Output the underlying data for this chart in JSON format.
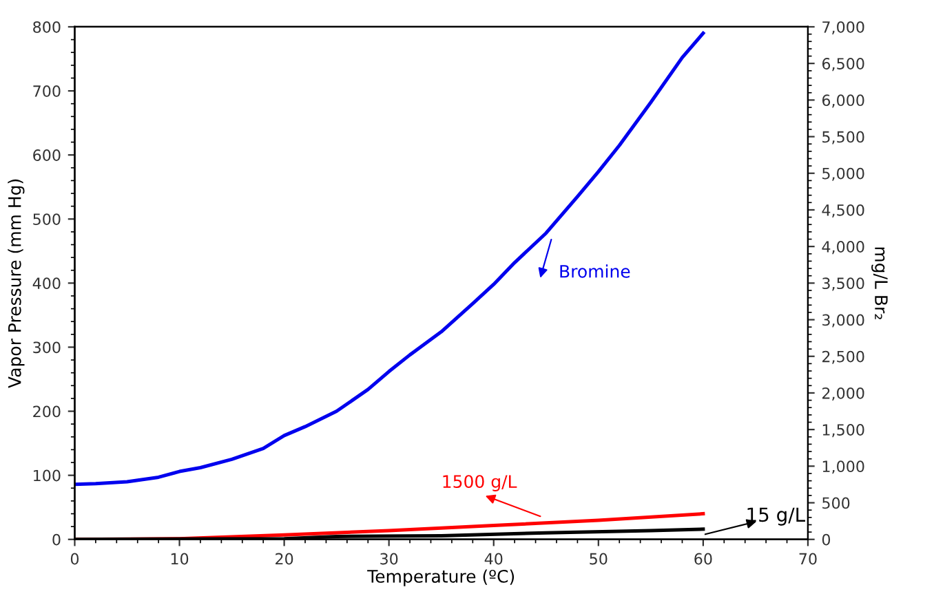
{
  "chart_data": {
    "type": "line",
    "xlabel": "Temperature (ºC)",
    "ylabel": "Vapor Pressure (mm Hg)",
    "y2label": "mg/L Br₂",
    "xlim": [
      0,
      70
    ],
    "xticks": [
      0,
      10,
      20,
      30,
      40,
      50,
      60,
      70
    ],
    "ylim": [
      0,
      800
    ],
    "yticks": [
      0,
      100,
      200,
      300,
      400,
      500,
      600,
      700,
      800
    ],
    "y2lim": [
      0,
      7000
    ],
    "y2ticks": [
      {
        "value": 0,
        "label": "0"
      },
      {
        "value": 500,
        "label": "500"
      },
      {
        "value": 1000,
        "label": "1,000"
      },
      {
        "value": 1500,
        "label": "1,500"
      },
      {
        "value": 2000,
        "label": "2,000"
      },
      {
        "value": 2500,
        "label": "2,500"
      },
      {
        "value": 3000,
        "label": "3,000"
      },
      {
        "value": 3500,
        "label": "3,500"
      },
      {
        "value": 4000,
        "label": "4,000"
      },
      {
        "value": 4500,
        "label": "4,500"
      },
      {
        "value": 5000,
        "label": "5,000"
      },
      {
        "value": 5500,
        "label": "5,500"
      },
      {
        "value": 6000,
        "label": "6,000"
      },
      {
        "value": 6500,
        "label": "6,500"
      },
      {
        "value": 7000,
        "label": "7,000"
      }
    ],
    "grid": false,
    "legend": false,
    "marker": "none",
    "line_style": "solid",
    "series": [
      {
        "color": "#0000ee",
        "x": [
          0,
          2,
          5,
          8,
          10,
          12,
          15,
          18,
          20,
          22,
          25,
          28,
          30,
          32,
          35,
          38,
          40,
          42,
          45,
          48,
          50,
          52,
          55,
          58,
          60
        ],
        "values": [
          86,
          87,
          90,
          97,
          106,
          112,
          125,
          142,
          162,
          176,
          200,
          234,
          262,
          288,
          324,
          368,
          398,
          432,
          478,
          535,
          574,
          615,
          682,
          752,
          790
        ]
      },
      {
        "color": "#ff0000",
        "axis": "y2",
        "x": [
          0,
          10,
          20,
          30,
          40,
          50,
          60
        ],
        "values": [
          0,
          10,
          60,
          120,
          190,
          260,
          350
        ]
      },
      {
        "color": "#000000",
        "axis": "y2",
        "x": [
          0,
          20,
          25,
          35,
          45,
          55,
          60
        ],
        "values": [
          0,
          10,
          40,
          50,
          90,
          120,
          140
        ]
      }
    ],
    "annotations": [
      "Bromine",
      "1500 g/L",
      "15 g/L"
    ]
  }
}
